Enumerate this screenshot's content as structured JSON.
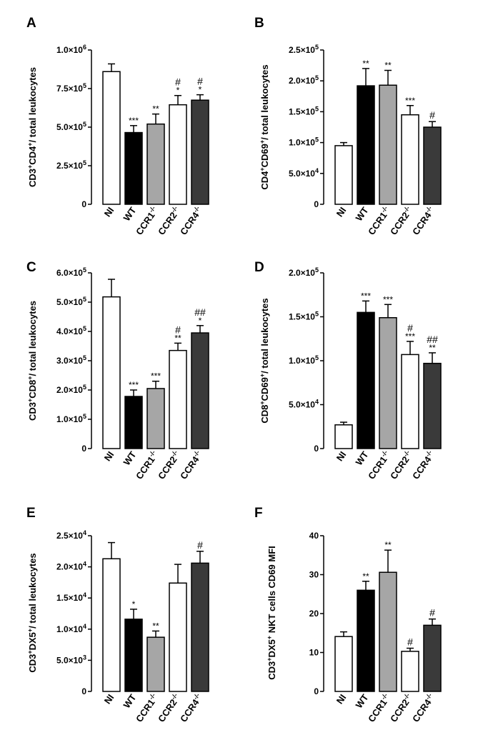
{
  "chart_data": [
    {
      "panel": "A",
      "type": "bar",
      "ylabel": [
        "CD3",
        "+",
        "CD4",
        "+",
        "/ total leukocytes"
      ],
      "ylim": [
        0,
        1000000
      ],
      "ticks": [
        {
          "value": 0,
          "label": "0"
        },
        {
          "value": 250000,
          "label": "2.5×10",
          "exp": "5"
        },
        {
          "value": 500000,
          "label": "5.0×10",
          "exp": "5"
        },
        {
          "value": 750000,
          "label": "7.5×10",
          "exp": "5"
        },
        {
          "value": 1000000,
          "label": "1.0×10",
          "exp": "6"
        }
      ],
      "bars": [
        {
          "category": "NI",
          "sup": "",
          "value": 860000,
          "error": 50000,
          "color": "#ffffff",
          "sig": "",
          "hash": ""
        },
        {
          "category": "WT",
          "sup": "",
          "value": 465000,
          "error": 45000,
          "color": "#000000",
          "sig": "***",
          "hash": ""
        },
        {
          "category": "CCR1",
          "sup": "-/-",
          "value": 520000,
          "error": 65000,
          "color": "#a6a6a6",
          "sig": "**",
          "hash": ""
        },
        {
          "category": "CCR2",
          "sup": "-/-",
          "value": 645000,
          "error": 60000,
          "color": "#ffffff",
          "sig": "*",
          "hash": "#"
        },
        {
          "category": "CCR4",
          "sup": "-/-",
          "value": 675000,
          "error": 35000,
          "color": "#3a3a3a",
          "sig": "*",
          "hash": "#"
        }
      ]
    },
    {
      "panel": "B",
      "type": "bar",
      "ylabel": [
        "CD4",
        "+",
        "CD69",
        "+",
        "/ total leukocytes"
      ],
      "ylim": [
        0,
        250000
      ],
      "ticks": [
        {
          "value": 0,
          "label": "0"
        },
        {
          "value": 50000,
          "label": "5.0×10",
          "exp": "4"
        },
        {
          "value": 100000,
          "label": "1.0×10",
          "exp": "5"
        },
        {
          "value": 150000,
          "label": "1.5×10",
          "exp": "5"
        },
        {
          "value": 200000,
          "label": "2.0×10",
          "exp": "5"
        },
        {
          "value": 250000,
          "label": "2.5×10",
          "exp": "5"
        }
      ],
      "bars": [
        {
          "category": "NI",
          "sup": "",
          "value": 95000,
          "error": 5000,
          "color": "#ffffff",
          "sig": "",
          "hash": ""
        },
        {
          "category": "WT",
          "sup": "",
          "value": 192000,
          "error": 28000,
          "color": "#000000",
          "sig": "**",
          "hash": ""
        },
        {
          "category": "CCR1",
          "sup": "-/-",
          "value": 193000,
          "error": 24000,
          "color": "#a6a6a6",
          "sig": "**",
          "hash": ""
        },
        {
          "category": "CCR2",
          "sup": "-/-",
          "value": 145000,
          "error": 15000,
          "color": "#ffffff",
          "sig": "***",
          "hash": ""
        },
        {
          "category": "CCR4",
          "sup": "-/-",
          "value": 125000,
          "error": 9000,
          "color": "#3a3a3a",
          "sig": "",
          "hash": "#"
        }
      ]
    },
    {
      "panel": "C",
      "type": "bar",
      "ylabel": [
        "CD3",
        "+",
        "CD8",
        "+",
        "/ total leukocytes"
      ],
      "ylim": [
        0,
        600000
      ],
      "ticks": [
        {
          "value": 0,
          "label": "0"
        },
        {
          "value": 100000,
          "label": "1.0×10",
          "exp": "5"
        },
        {
          "value": 200000,
          "label": "2.0×10",
          "exp": "5"
        },
        {
          "value": 300000,
          "label": "3.0×10",
          "exp": "5"
        },
        {
          "value": 400000,
          "label": "4.0×10",
          "exp": "5"
        },
        {
          "value": 500000,
          "label": "5.0×10",
          "exp": "5"
        },
        {
          "value": 600000,
          "label": "6.0×10",
          "exp": "5"
        }
      ],
      "bars": [
        {
          "category": "NI",
          "sup": "",
          "value": 518000,
          "error": 60000,
          "color": "#ffffff",
          "sig": "",
          "hash": ""
        },
        {
          "category": "WT",
          "sup": "",
          "value": 178000,
          "error": 22000,
          "color": "#000000",
          "sig": "***",
          "hash": ""
        },
        {
          "category": "CCR1",
          "sup": "-/-",
          "value": 205000,
          "error": 25000,
          "color": "#a6a6a6",
          "sig": "***",
          "hash": ""
        },
        {
          "category": "CCR2",
          "sup": "-/-",
          "value": 335000,
          "error": 25000,
          "color": "#ffffff",
          "sig": "**",
          "hash": "#"
        },
        {
          "category": "CCR4",
          "sup": "-/-",
          "value": 395000,
          "error": 25000,
          "color": "#3a3a3a",
          "sig": "*",
          "hash": "##"
        }
      ]
    },
    {
      "panel": "D",
      "type": "bar",
      "ylabel": [
        "CD8",
        "+",
        "CD69",
        "+",
        "/ total leukocytes"
      ],
      "ylim": [
        0,
        200000
      ],
      "ticks": [
        {
          "value": 0,
          "label": "0"
        },
        {
          "value": 50000,
          "label": "5.0×10",
          "exp": "4"
        },
        {
          "value": 100000,
          "label": "1.0×10",
          "exp": "5"
        },
        {
          "value": 150000,
          "label": "1.5×10",
          "exp": "5"
        },
        {
          "value": 200000,
          "label": "2.0×10",
          "exp": "5"
        }
      ],
      "bars": [
        {
          "category": "NI",
          "sup": "",
          "value": 27000,
          "error": 3000,
          "color": "#ffffff",
          "sig": "",
          "hash": ""
        },
        {
          "category": "WT",
          "sup": "",
          "value": 155000,
          "error": 13000,
          "color": "#000000",
          "sig": "***",
          "hash": ""
        },
        {
          "category": "CCR1",
          "sup": "-/-",
          "value": 149000,
          "error": 15000,
          "color": "#a6a6a6",
          "sig": "***",
          "hash": ""
        },
        {
          "category": "CCR2",
          "sup": "-/-",
          "value": 107000,
          "error": 15000,
          "color": "#ffffff",
          "sig": "***",
          "hash": "#"
        },
        {
          "category": "CCR4",
          "sup": "-/-",
          "value": 97000,
          "error": 12000,
          "color": "#3a3a3a",
          "sig": "**",
          "hash": "##"
        }
      ]
    },
    {
      "panel": "E",
      "type": "bar",
      "ylabel": [
        "CD3",
        "+",
        "DX5",
        "+",
        "/ total leukocytes"
      ],
      "ylim": [
        0,
        25000
      ],
      "ticks": [
        {
          "value": 0,
          "label": "0"
        },
        {
          "value": 5000,
          "label": "5.0×10",
          "exp": "3"
        },
        {
          "value": 10000,
          "label": "1.0×10",
          "exp": "4"
        },
        {
          "value": 15000,
          "label": "1.5×10",
          "exp": "4"
        },
        {
          "value": 20000,
          "label": "2.0×10",
          "exp": "4"
        },
        {
          "value": 25000,
          "label": "2.5×10",
          "exp": "4"
        }
      ],
      "bars": [
        {
          "category": "NI",
          "sup": "",
          "value": 21300,
          "error": 2600,
          "color": "#ffffff",
          "sig": "",
          "hash": ""
        },
        {
          "category": "WT",
          "sup": "",
          "value": 11600,
          "error": 1600,
          "color": "#000000",
          "sig": "*",
          "hash": ""
        },
        {
          "category": "CCR1",
          "sup": "-/-",
          "value": 8700,
          "error": 1000,
          "color": "#a6a6a6",
          "sig": "**",
          "hash": ""
        },
        {
          "category": "CCR2",
          "sup": "-/-",
          "value": 17400,
          "error": 3000,
          "color": "#ffffff",
          "sig": "",
          "hash": ""
        },
        {
          "category": "CCR4",
          "sup": "-/-",
          "value": 20600,
          "error": 1900,
          "color": "#3a3a3a",
          "sig": "",
          "hash": "#"
        }
      ]
    },
    {
      "panel": "F",
      "type": "bar",
      "ylabel": [
        "CD3",
        "+",
        "DX5",
        "+",
        " NKT cells CD69 MFI"
      ],
      "ylim": [
        0,
        40
      ],
      "ticks": [
        {
          "value": 0,
          "label": "0"
        },
        {
          "value": 10,
          "label": "10"
        },
        {
          "value": 20,
          "label": "20"
        },
        {
          "value": 30,
          "label": "30"
        },
        {
          "value": 40,
          "label": "40"
        }
      ],
      "bars": [
        {
          "category": "NI",
          "sup": "",
          "value": 14.1,
          "error": 1.2,
          "color": "#ffffff",
          "sig": "",
          "hash": ""
        },
        {
          "category": "WT",
          "sup": "",
          "value": 26.0,
          "error": 2.3,
          "color": "#000000",
          "sig": "**",
          "hash": ""
        },
        {
          "category": "CCR1",
          "sup": "-/-",
          "value": 30.6,
          "error": 5.7,
          "color": "#a6a6a6",
          "sig": "**",
          "hash": ""
        },
        {
          "category": "CCR2",
          "sup": "-/-",
          "value": 10.3,
          "error": 0.8,
          "color": "#ffffff",
          "sig": "",
          "hash": "#"
        },
        {
          "category": "CCR4",
          "sup": "-/-",
          "value": 17.0,
          "error": 1.6,
          "color": "#3a3a3a",
          "sig": "",
          "hash": "#"
        }
      ]
    }
  ]
}
